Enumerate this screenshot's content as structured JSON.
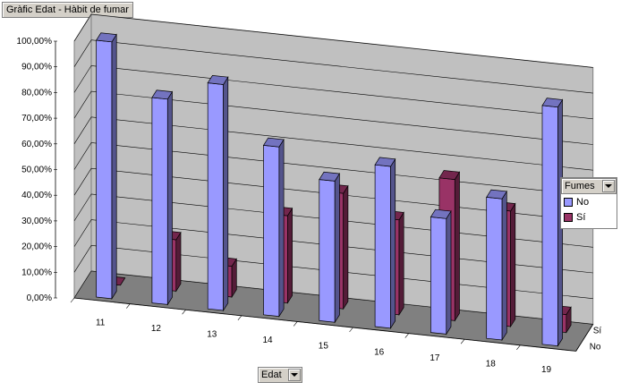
{
  "title": "Gràfic Edat - Hàbit de fumar",
  "legend": {
    "field_label": "Fumes",
    "items": [
      {
        "label": "No",
        "color": "#9999ff"
      },
      {
        "label": "Sí",
        "color": "#993366"
      }
    ]
  },
  "x_field_label": "Edat",
  "depth_labels": [
    "Sí",
    "No"
  ],
  "chart_data": {
    "type": "bar",
    "subtype": "3d-column",
    "title": "Gràfic Edat - Hàbit de fumar",
    "xlabel": "Edat",
    "ylabel": "",
    "categories": [
      "11",
      "12",
      "13",
      "14",
      "15",
      "16",
      "17",
      "18",
      "19"
    ],
    "series": [
      {
        "name": "No",
        "color": "#9999ff",
        "values": [
          100.0,
          80.0,
          88.0,
          66.0,
          55.0,
          63.0,
          45.0,
          55.0,
          93.0
        ]
      },
      {
        "name": "Sí",
        "color": "#993366",
        "values": [
          0.0,
          20.0,
          12.0,
          34.0,
          45.0,
          37.0,
          55.0,
          45.0,
          7.0
        ]
      }
    ],
    "y_ticks": [
      "0,00%",
      "10,00%",
      "20,00%",
      "30,00%",
      "40,00%",
      "50,00%",
      "60,00%",
      "70,00%",
      "80,00%",
      "90,00%",
      "100,00%"
    ],
    "ylim": [
      0,
      100
    ],
    "grid": true,
    "legend_position": "right"
  }
}
